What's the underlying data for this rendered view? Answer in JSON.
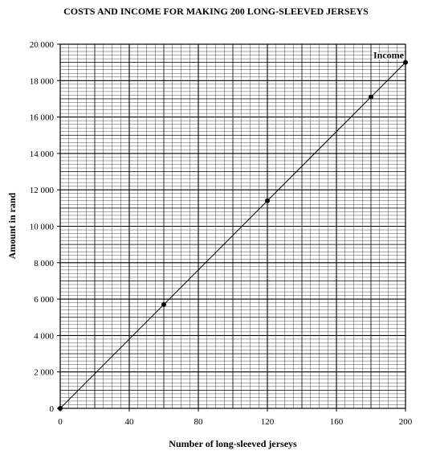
{
  "chart_data": {
    "type": "line",
    "title": "COSTS AND INCOME FOR MAKING 200 LONG-SLEEVED JERSEYS",
    "xlabel": "Number of long-sleeved jerseys",
    "ylabel": "Amount in rand",
    "xlim": [
      0,
      200
    ],
    "ylim": [
      0,
      20000
    ],
    "x_ticks": [
      0,
      40,
      80,
      120,
      160,
      200
    ],
    "x_tick_labels": [
      "0",
      "40",
      "80",
      "120",
      "160",
      "200"
    ],
    "y_ticks": [
      0,
      2000,
      4000,
      6000,
      8000,
      10000,
      12000,
      14000,
      16000,
      18000,
      20000
    ],
    "y_tick_labels": [
      "0",
      "2 000",
      "4 000",
      "6 000",
      "8 000",
      "10 000",
      "12 000",
      "14 000",
      "16 000",
      "18 000",
      "20 000"
    ],
    "grid": true,
    "series": [
      {
        "name": "Income",
        "x": [
          0,
          60,
          120,
          180,
          200
        ],
        "y": [
          0,
          5700,
          11400,
          17100,
          19000
        ]
      }
    ],
    "colors": {
      "line": "#000000",
      "grid": "#000000",
      "background": "#ffffff"
    }
  }
}
